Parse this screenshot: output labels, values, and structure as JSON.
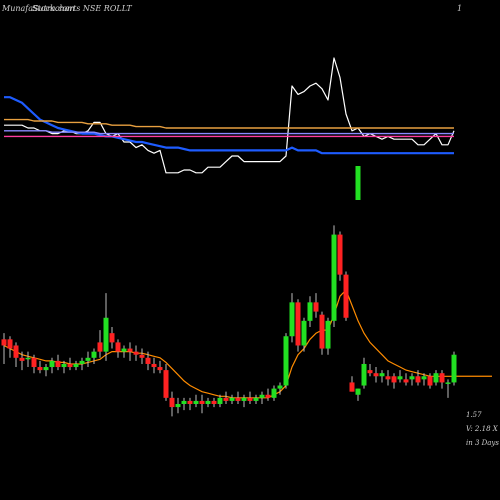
{
  "header": {
    "brand": "MunafaSutra.com",
    "title": "Stockcharts NSE ROLLT",
    "right_label": "1"
  },
  "notes": [
    "1.57",
    "V: 2.18  X",
    "in 3 Days"
  ],
  "chart_data": [
    {
      "type": "line",
      "panel": "indicator",
      "ylim": [
        0,
        100
      ],
      "grid": false,
      "series": [
        {
          "color": "#ffffff",
          "values": [
            42,
            42,
            42,
            42,
            40,
            40,
            38,
            38,
            36,
            36,
            38,
            38,
            36,
            36,
            38,
            44,
            44,
            36,
            34,
            36,
            30,
            30,
            26,
            28,
            24,
            22,
            24,
            8,
            8,
            8,
            10,
            10,
            8,
            8,
            12,
            12,
            12,
            16,
            20,
            20,
            16,
            16,
            16,
            16,
            16,
            16,
            16,
            20,
            70,
            64,
            66,
            70,
            72,
            68,
            60,
            90,
            76,
            50,
            38,
            40,
            34,
            36,
            34,
            32,
            34,
            32,
            32,
            32,
            32,
            28,
            28,
            32,
            36,
            28,
            28,
            38
          ]
        },
        {
          "color": "#1e5cff",
          "values": [
            62,
            62,
            60,
            58,
            54,
            50,
            46,
            44,
            42,
            40,
            39,
            38,
            37,
            36,
            36,
            36,
            35,
            34,
            34,
            33,
            32,
            31,
            30,
            30,
            29,
            28,
            27,
            26,
            26,
            26,
            25,
            24,
            24,
            24,
            24,
            24,
            24,
            24,
            24,
            24,
            24,
            24,
            24,
            24,
            24,
            24,
            24,
            24,
            26,
            24,
            24,
            24,
            24,
            22,
            22,
            22,
            22,
            22,
            22,
            22,
            22,
            22,
            22,
            22,
            22,
            22,
            22,
            22,
            22,
            22,
            22,
            22,
            22,
            22,
            22,
            22
          ]
        },
        {
          "color": "#ff3ca0",
          "values": [
            34,
            34,
            34,
            34,
            34,
            34,
            34,
            34,
            34,
            34,
            34,
            34,
            34,
            34,
            34,
            34,
            34,
            34,
            34,
            34,
            34,
            34,
            34,
            34,
            34,
            34,
            34,
            34,
            34,
            34,
            34,
            34,
            34,
            34,
            34,
            34,
            34,
            34,
            34,
            34,
            34,
            34,
            34,
            34,
            34,
            34,
            34,
            34,
            34,
            34,
            34,
            34,
            34,
            34,
            34,
            34,
            34,
            34,
            34,
            34,
            34,
            34,
            34,
            34,
            34,
            34,
            34,
            34,
            34,
            34,
            34,
            34,
            34,
            34,
            34,
            34
          ]
        },
        {
          "color": "#e8a040",
          "values": [
            46,
            46,
            46,
            46,
            46,
            45,
            45,
            45,
            45,
            44,
            44,
            44,
            44,
            44,
            43,
            43,
            43,
            43,
            42,
            42,
            42,
            42,
            41,
            41,
            41,
            41,
            41,
            40,
            40,
            40,
            40,
            40,
            40,
            40,
            40,
            40,
            40,
            40,
            40,
            40,
            40,
            40,
            40,
            40,
            40,
            40,
            40,
            40,
            40,
            40,
            40,
            40,
            40,
            40,
            40,
            40,
            40,
            40,
            40,
            40,
            40,
            40,
            40,
            40,
            40,
            40,
            40,
            40,
            40,
            40,
            40,
            40,
            40,
            40,
            40,
            40
          ]
        },
        {
          "color": "#8a8aff",
          "values": [
            38,
            38,
            38,
            38,
            38,
            38,
            38,
            38,
            37,
            37,
            37,
            37,
            37,
            37,
            37,
            37,
            36,
            36,
            36,
            36,
            36,
            36,
            36,
            36,
            36,
            36,
            36,
            36,
            36,
            36,
            36,
            36,
            36,
            36,
            36,
            36,
            36,
            36,
            36,
            36,
            36,
            36,
            36,
            36,
            36,
            36,
            36,
            36,
            36,
            36,
            36,
            36,
            36,
            36,
            36,
            36,
            36,
            36,
            36,
            36,
            36,
            36,
            36,
            36,
            36,
            36,
            36,
            36,
            36,
            36,
            36,
            36,
            36,
            36,
            36,
            36
          ]
        }
      ]
    },
    {
      "type": "candlestick",
      "panel": "price",
      "up_color": "#22e022",
      "down_color": "#ff2222",
      "line_color": "#ff8c00",
      "ylim": [
        0,
        100
      ],
      "grid": false,
      "candles": [
        {
          "o": 42,
          "h": 46,
          "l": 26,
          "c": 38
        },
        {
          "o": 42,
          "h": 44,
          "l": 30,
          "c": 36
        },
        {
          "o": 38,
          "h": 40,
          "l": 24,
          "c": 30
        },
        {
          "o": 30,
          "h": 34,
          "l": 22,
          "c": 28
        },
        {
          "o": 30,
          "h": 34,
          "l": 24,
          "c": 30
        },
        {
          "o": 30,
          "h": 32,
          "l": 20,
          "c": 24
        },
        {
          "o": 24,
          "h": 28,
          "l": 20,
          "c": 22
        },
        {
          "o": 22,
          "h": 26,
          "l": 18,
          "c": 24
        },
        {
          "o": 24,
          "h": 30,
          "l": 20,
          "c": 28
        },
        {
          "o": 28,
          "h": 32,
          "l": 22,
          "c": 24
        },
        {
          "o": 24,
          "h": 28,
          "l": 20,
          "c": 26
        },
        {
          "o": 26,
          "h": 30,
          "l": 22,
          "c": 24
        },
        {
          "o": 24,
          "h": 28,
          "l": 22,
          "c": 26
        },
        {
          "o": 26,
          "h": 30,
          "l": 22,
          "c": 28
        },
        {
          "o": 28,
          "h": 34,
          "l": 24,
          "c": 30
        },
        {
          "o": 30,
          "h": 36,
          "l": 26,
          "c": 34
        },
        {
          "o": 40,
          "h": 48,
          "l": 30,
          "c": 34
        },
        {
          "o": 34,
          "h": 72,
          "l": 28,
          "c": 56
        },
        {
          "o": 46,
          "h": 50,
          "l": 36,
          "c": 40
        },
        {
          "o": 40,
          "h": 42,
          "l": 30,
          "c": 34
        },
        {
          "o": 34,
          "h": 38,
          "l": 30,
          "c": 36
        },
        {
          "o": 36,
          "h": 40,
          "l": 28,
          "c": 34
        },
        {
          "o": 34,
          "h": 38,
          "l": 28,
          "c": 32
        },
        {
          "o": 32,
          "h": 36,
          "l": 26,
          "c": 30
        },
        {
          "o": 30,
          "h": 34,
          "l": 22,
          "c": 26
        },
        {
          "o": 26,
          "h": 30,
          "l": 20,
          "c": 24
        },
        {
          "o": 24,
          "h": 28,
          "l": 20,
          "c": 22
        },
        {
          "o": 22,
          "h": 26,
          "l": 2,
          "c": 4
        },
        {
          "o": 4,
          "h": 8,
          "l": -8,
          "c": -2
        },
        {
          "o": -2,
          "h": 4,
          "l": -6,
          "c": 0
        },
        {
          "o": 0,
          "h": 4,
          "l": -4,
          "c": 2
        },
        {
          "o": 2,
          "h": 4,
          "l": -4,
          "c": 0
        },
        {
          "o": 0,
          "h": 6,
          "l": -2,
          "c": 2
        },
        {
          "o": 2,
          "h": 6,
          "l": -6,
          "c": 0
        },
        {
          "o": 0,
          "h": 4,
          "l": -2,
          "c": 2
        },
        {
          "o": 2,
          "h": 4,
          "l": -2,
          "c": 0
        },
        {
          "o": 0,
          "h": 6,
          "l": -2,
          "c": 4
        },
        {
          "o": 4,
          "h": 8,
          "l": 0,
          "c": 2
        },
        {
          "o": 2,
          "h": 6,
          "l": 0,
          "c": 4
        },
        {
          "o": 4,
          "h": 8,
          "l": 0,
          "c": 2
        },
        {
          "o": 2,
          "h": 6,
          "l": -2,
          "c": 4
        },
        {
          "o": 4,
          "h": 8,
          "l": 0,
          "c": 2
        },
        {
          "o": 2,
          "h": 6,
          "l": 0,
          "c": 4
        },
        {
          "o": 4,
          "h": 8,
          "l": 0,
          "c": 6
        },
        {
          "o": 6,
          "h": 10,
          "l": 2,
          "c": 4
        },
        {
          "o": 4,
          "h": 12,
          "l": 2,
          "c": 10
        },
        {
          "o": 10,
          "h": 14,
          "l": 6,
          "c": 12
        },
        {
          "o": 12,
          "h": 46,
          "l": 10,
          "c": 44
        },
        {
          "o": 44,
          "h": 72,
          "l": 40,
          "c": 66
        },
        {
          "o": 66,
          "h": 68,
          "l": 34,
          "c": 38
        },
        {
          "o": 38,
          "h": 56,
          "l": 34,
          "c": 54
        },
        {
          "o": 54,
          "h": 70,
          "l": 50,
          "c": 66
        },
        {
          "o": 66,
          "h": 72,
          "l": 56,
          "c": 60
        },
        {
          "o": 58,
          "h": 60,
          "l": 32,
          "c": 36
        },
        {
          "o": 36,
          "h": 56,
          "l": 32,
          "c": 54
        },
        {
          "o": 54,
          "h": 116,
          "l": 50,
          "c": 110
        },
        {
          "o": 110,
          "h": 112,
          "l": 80,
          "c": 84
        },
        {
          "o": 84,
          "h": 86,
          "l": 54,
          "c": 56
        },
        {
          "o": 14,
          "h": 18,
          "l": 8,
          "c": 8
        },
        {
          "o": 6,
          "h": 10,
          "l": 2,
          "c": 10
        },
        {
          "o": 12,
          "h": 30,
          "l": 10,
          "c": 26
        },
        {
          "o": 22,
          "h": 26,
          "l": 18,
          "c": 20
        },
        {
          "o": 20,
          "h": 24,
          "l": 14,
          "c": 18
        },
        {
          "o": 18,
          "h": 22,
          "l": 14,
          "c": 20
        },
        {
          "o": 18,
          "h": 22,
          "l": 12,
          "c": 16
        },
        {
          "o": 18,
          "h": 20,
          "l": 10,
          "c": 14
        },
        {
          "o": 16,
          "h": 22,
          "l": 14,
          "c": 18
        },
        {
          "o": 16,
          "h": 20,
          "l": 12,
          "c": 14
        },
        {
          "o": 16,
          "h": 20,
          "l": 12,
          "c": 18
        },
        {
          "o": 18,
          "h": 22,
          "l": 12,
          "c": 14
        },
        {
          "o": 16,
          "h": 20,
          "l": 12,
          "c": 18
        },
        {
          "o": 18,
          "h": 20,
          "l": 10,
          "c": 12
        },
        {
          "o": 14,
          "h": 22,
          "l": 12,
          "c": 20
        },
        {
          "o": 20,
          "h": 22,
          "l": 10,
          "c": 14
        },
        {
          "o": 14,
          "h": 16,
          "l": 4,
          "c": 14
        },
        {
          "o": 14,
          "h": 34,
          "l": 12,
          "c": 32
        }
      ],
      "moving_average": [
        38,
        36,
        34,
        32,
        31,
        30,
        29,
        28,
        28,
        27,
        27,
        26,
        26,
        26,
        27,
        28,
        29,
        32,
        34,
        34,
        34,
        34,
        33,
        33,
        32,
        31,
        30,
        27,
        23,
        19,
        15,
        12,
        10,
        8,
        7,
        6,
        5,
        5,
        4,
        4,
        4,
        4,
        4,
        4,
        4,
        6,
        8,
        12,
        24,
        32,
        36,
        42,
        46,
        48,
        48,
        58,
        70,
        74,
        64,
        54,
        46,
        40,
        36,
        32,
        28,
        26,
        24,
        22,
        21,
        20,
        19,
        18,
        18,
        18,
        18,
        18
      ]
    }
  ]
}
